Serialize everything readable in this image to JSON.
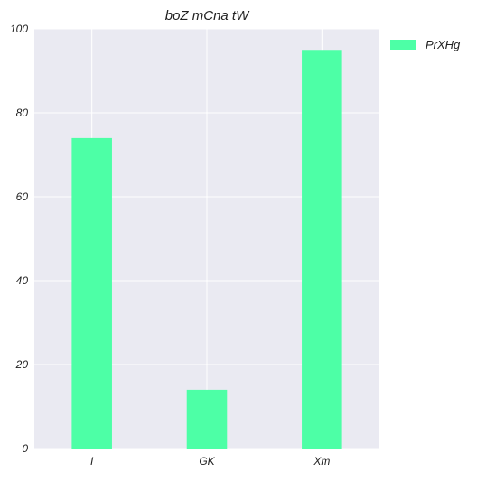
{
  "chart_data": {
    "type": "bar",
    "title": "boZ mCna tW",
    "xlabel": "",
    "ylabel": "",
    "categories": [
      "I",
      "GK",
      "Xm"
    ],
    "series": [
      {
        "name": "PrXHg",
        "values": [
          74,
          14,
          95
        ],
        "color": "#4dffa6"
      }
    ],
    "ylim": [
      0,
      100
    ],
    "yticks": [
      0,
      20,
      40,
      60,
      80,
      100
    ],
    "grid": true,
    "legend_position": "outside-top-right",
    "background_color": "#eaeaf2",
    "grid_color": "#ffffff"
  }
}
